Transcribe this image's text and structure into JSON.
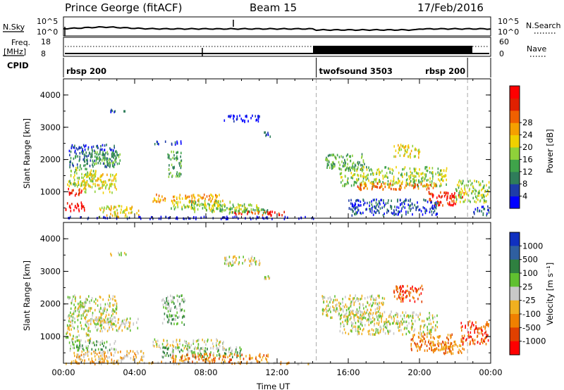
{
  "header": {
    "station": "Prince George (fitACF)",
    "beam": "Beam 15",
    "date": "17/Feb/2016"
  },
  "strips": {
    "nsky_label": "N.Sky",
    "nsky_ticks": [
      "10^5",
      "10^0"
    ],
    "nsearch_label": "N.Search",
    "nsearch_ticks": [
      "10^5",
      "10^0"
    ],
    "freq_label": "Freq.",
    "freq_unit": "[MHz]",
    "freq_ticks": [
      "18",
      "8"
    ],
    "nave_label": "Nave",
    "nave_ticks": [
      "60",
      "0"
    ],
    "cpid_label": "CPID",
    "cpid_segments": [
      {
        "name": "rbsp 200",
        "start": 0.0
      },
      {
        "name": "twofsound 3503",
        "start": 14.2
      },
      {
        "name": "rbsp 200",
        "start": 22.7
      }
    ]
  },
  "chart_data": [
    {
      "type": "heatmap",
      "name": "power",
      "ylabel": "Slant Range [km]",
      "xlabel": "",
      "yticks": [
        "1000",
        "2000",
        "3000",
        "4000"
      ],
      "ylim": [
        180,
        4500
      ],
      "xlim": [
        0,
        24
      ],
      "colorbar": {
        "label": "Power [dB]",
        "ticks": [
          "4",
          "8",
          "12",
          "16",
          "20",
          "24",
          "28"
        ],
        "colors": [
          "#0000ff",
          "#1e3ca8",
          "#2f7d5a",
          "#3fa34a",
          "#8fd13a",
          "#f0d000",
          "#f5a000",
          "#f06000",
          "#e02000",
          "#ff0000"
        ]
      }
    },
    {
      "type": "heatmap",
      "name": "velocity",
      "ylabel": "Slant Range [km]",
      "xlabel": "Time UT",
      "yticks": [
        "1000",
        "2000",
        "3000",
        "4000"
      ],
      "xticks": [
        "00:00",
        "04:00",
        "08:00",
        "12:00",
        "16:00",
        "20:00",
        "00:00"
      ],
      "ylim": [
        180,
        4500
      ],
      "xlim": [
        0,
        24
      ],
      "colorbar": {
        "label": "Velocity [m s⁻¹]",
        "ticks": [
          "1000",
          "500",
          "100",
          "25",
          "-25",
          "-100",
          "-500",
          "-1000"
        ],
        "colors": [
          "#1030c0",
          "#2f5fa0",
          "#2f8040",
          "#60c030",
          "#c8c8c8",
          "#f0b020",
          "#f08000",
          "#e04000",
          "#ff0000"
        ]
      }
    }
  ]
}
